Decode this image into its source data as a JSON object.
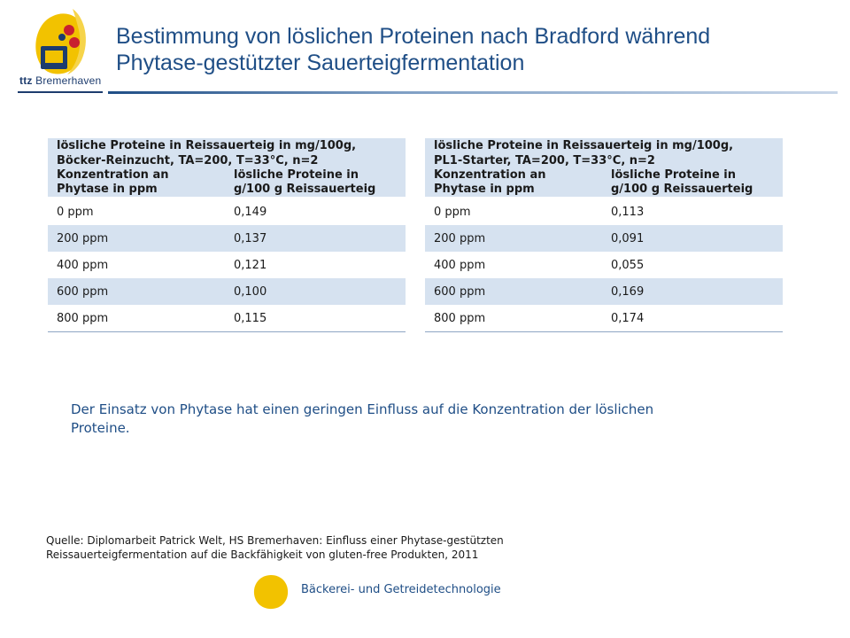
{
  "logo": {
    "text_bold": "ttz",
    "text_rest": " Bremerhaven"
  },
  "title": {
    "line1": "Bestimmung von löslichen Proteinen nach Bradford während",
    "line2": "Phytase-gestützter Sauerteigfermentation"
  },
  "tables": [
    {
      "caption": [
        "lösliche Proteine in Reissauerteig in mg/100g,",
        "Böcker-Reinzucht, TA=200, T=33°C, n=2"
      ],
      "col1": [
        "Konzentration an",
        "Phytase in ppm"
      ],
      "col2": [
        "lösliche Proteine in",
        "g/100 g Reissauerteig"
      ],
      "rows": [
        [
          "0 ppm",
          "0,149"
        ],
        [
          "200 ppm",
          "0,137"
        ],
        [
          "400 ppm",
          "0,121"
        ],
        [
          "600 ppm",
          "0,100"
        ],
        [
          "800 ppm",
          "0,115"
        ]
      ]
    },
    {
      "caption": [
        "lösliche Proteine in Reissauerteig in mg/100g,",
        "PL1-Starter, TA=200, T=33°C, n=2"
      ],
      "col1": [
        "Konzentration an",
        "Phytase in ppm"
      ],
      "col2": [
        "lösliche Proteine in",
        "g/100 g Reissauerteig"
      ],
      "rows": [
        [
          "0 ppm",
          "0,113"
        ],
        [
          "200 ppm",
          "0,091"
        ],
        [
          "400 ppm",
          "0,055"
        ],
        [
          "600 ppm",
          "0,169"
        ],
        [
          "800 ppm",
          "0,174"
        ]
      ]
    }
  ],
  "note": [
    "Der Einsatz von Phytase hat  einen geringen Einfluss auf die Konzentration der löslichen",
    "Proteine."
  ],
  "source": [
    "Quelle: Diplomarbeit Patrick Welt, HS Bremerhaven: Einfluss einer Phytase-gestützten",
    "Reissauerteigfermentation auf die Backfähigkeit von gluten-free Produkten, 2011"
  ],
  "footer": {
    "text": "Bäckerei- und Getreidetechnologie",
    "dot_icon": "yellow-circle-icon"
  },
  "colors": {
    "title": "#1f4e86",
    "table_fill": "#d6e2f0",
    "logo_yellow": "#f2c200",
    "logo_red": "#c8202f"
  }
}
